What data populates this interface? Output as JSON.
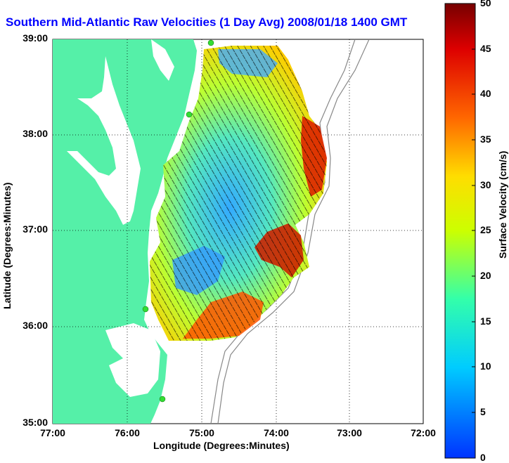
{
  "title": "Southern Mid-Atlantic Raw Velocities (1 Day Avg) 2008/01/18 1400 GMT",
  "axes": {
    "xlabel": "Longitude (Degrees:Minutes)",
    "ylabel": "Latitude (Degrees:Minutes)",
    "xticks": [
      "77:00",
      "76:00",
      "75:00",
      "74:00",
      "73:00",
      "72:00"
    ],
    "yticks": [
      "39:00",
      "38:00",
      "37:00",
      "36:00",
      "35:00"
    ]
  },
  "colorbar": {
    "label": "Surface Velocity (cm/s)",
    "ticks": [
      "0",
      "5",
      "10",
      "15",
      "20",
      "25",
      "30",
      "35",
      "40",
      "45",
      "50"
    ]
  },
  "colors": {
    "land": "#55f0a8",
    "title": "#0000ff",
    "station": "#33dd33"
  }
}
